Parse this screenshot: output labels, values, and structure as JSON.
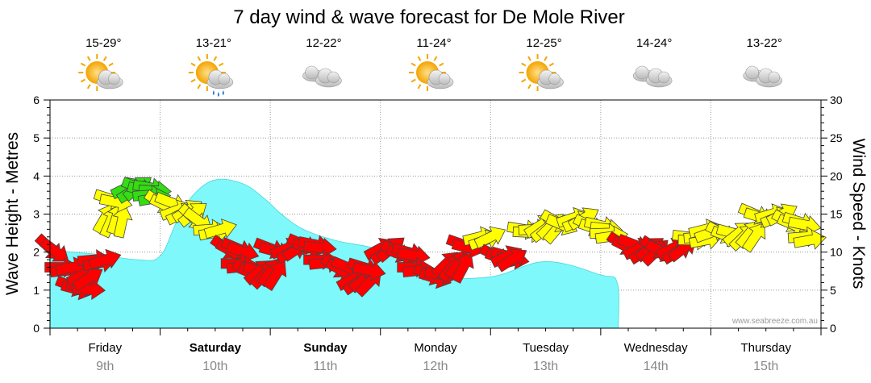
{
  "chart_data": {
    "type": "area",
    "title": "7 day wind & wave forecast for De Mole River",
    "ylabel_left": "Wave Height - Metres",
    "ylabel_right": "Wind Speed - Knots",
    "ylim_left": [
      0,
      6
    ],
    "ylim_right": [
      0,
      30
    ],
    "yticks_left": [
      "0",
      "1",
      "2",
      "3",
      "4",
      "5",
      "6"
    ],
    "yticks_right": [
      "0",
      "5",
      "10",
      "15",
      "20",
      "25",
      "30"
    ],
    "grid": true,
    "credit": "www.seabreeze.com.au",
    "colors": {
      "wave_fill": "#7ef8fa",
      "wave_edge": "#4fd6da",
      "wind_red": "#ff0000",
      "wind_yellow": "#ffff00",
      "wind_green": "#33dd11",
      "arrow_outline": "#444444"
    },
    "days": [
      {
        "name": "Friday",
        "date": "9th",
        "bold": false,
        "temp": "15-29°",
        "icon": "partly-cloudy-icon"
      },
      {
        "name": "Saturday",
        "date": "10th",
        "bold": true,
        "temp": "13-21°",
        "icon": "partly-cloudy-showers-icon"
      },
      {
        "name": "Sunday",
        "date": "11th",
        "bold": true,
        "temp": "12-22°",
        "icon": "cloudy-icon"
      },
      {
        "name": "Monday",
        "date": "12th",
        "bold": false,
        "temp": "11-24°",
        "icon": "partly-cloudy-icon"
      },
      {
        "name": "Tuesday",
        "date": "13th",
        "bold": false,
        "temp": "12-25°",
        "icon": "partly-cloudy-icon"
      },
      {
        "name": "Wednesday",
        "date": "14th",
        "bold": false,
        "temp": "14-24°",
        "icon": "cloudy-icon"
      },
      {
        "name": "Thursday",
        "date": "15th",
        "bold": false,
        "temp": "13-22°",
        "icon": "cloudy-icon"
      }
    ],
    "wave_height": {
      "name": "Wave height (m)",
      "x_days": [
        0.0,
        0.4,
        0.8,
        1.0,
        1.15,
        1.3,
        1.5,
        1.75,
        1.95,
        2.1,
        2.3,
        2.6,
        3.0,
        3.5,
        4.0,
        4.5,
        5.0,
        5.15,
        5.16
      ],
      "values": [
        2.05,
        1.95,
        1.8,
        1.9,
        2.8,
        3.5,
        3.9,
        3.8,
        3.4,
        3.0,
        2.6,
        2.3,
        2.05,
        1.4,
        1.35,
        1.75,
        1.4,
        1.2,
        0.0
      ]
    },
    "wind_speed": {
      "name": "Wind speed (knots)",
      "x_days": [
        0.0,
        0.1,
        0.2,
        0.3,
        0.4,
        0.5,
        0.55,
        0.7,
        0.8,
        0.9,
        1.0,
        1.15,
        1.3,
        1.45,
        1.6,
        1.7,
        1.8,
        1.9,
        2.0,
        2.15,
        2.3,
        2.45,
        2.6,
        2.75,
        2.85,
        3.0,
        3.15,
        3.3,
        3.45,
        3.6,
        3.75,
        3.9,
        4.05,
        4.15,
        4.3,
        4.45,
        4.6,
        4.75,
        4.9,
        5.05,
        5.2,
        5.35,
        5.5,
        5.65,
        5.8,
        5.95,
        6.1,
        6.25,
        6.4,
        6.55,
        6.7,
        6.85
      ],
      "values": [
        10.5,
        8,
        5.5,
        7,
        9,
        14.5,
        17,
        18.5,
        18.5,
        17.5,
        16.5,
        15.5,
        14.5,
        13,
        10.5,
        8.5,
        7.5,
        7.5,
        10.5,
        10.5,
        11,
        9,
        8,
        6.5,
        8,
        10.5,
        10,
        8,
        7,
        8.5,
        11,
        12,
        9.5,
        9.5,
        13,
        13.5,
        14,
        14.5,
        13.5,
        12.5,
        11,
        10.5,
        10.5,
        10.5,
        12,
        13,
        12.5,
        12.5,
        15,
        15,
        14,
        12
      ]
    }
  }
}
